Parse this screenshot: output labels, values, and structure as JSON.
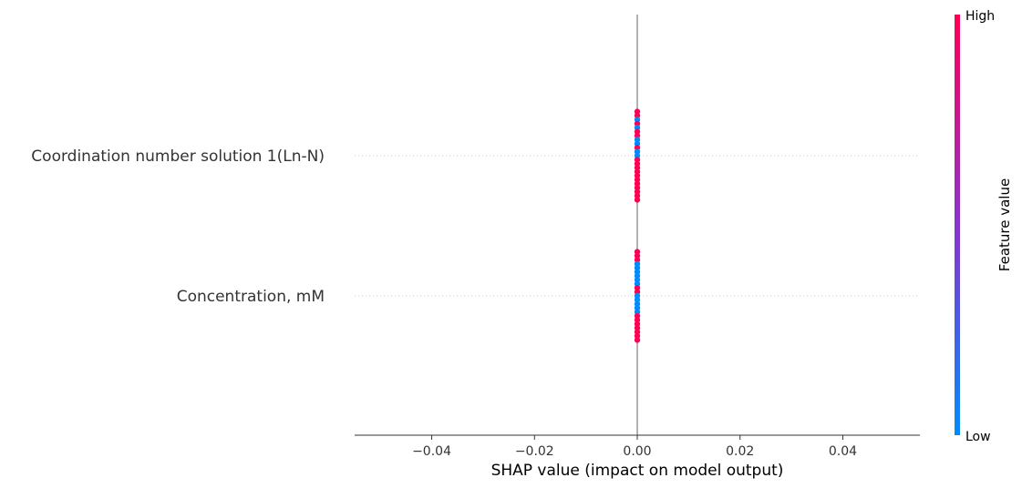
{
  "chart_data": {
    "type": "scatter",
    "subtype": "shap-beeswarm",
    "features": [
      {
        "name": "Coordination number solution  1(Ln-N)",
        "points": [
          {
            "shap": 0.0,
            "feature_level": "high"
          },
          {
            "shap": 0.0,
            "feature_level": "high"
          },
          {
            "shap": 0.0,
            "feature_level": "low"
          },
          {
            "shap": 0.0,
            "feature_level": "high"
          },
          {
            "shap": 0.0,
            "feature_level": "low"
          },
          {
            "shap": 0.0,
            "feature_level": "high"
          },
          {
            "shap": 0.0,
            "feature_level": "high"
          },
          {
            "shap": 0.0,
            "feature_level": "low"
          },
          {
            "shap": 0.0,
            "feature_level": "low"
          },
          {
            "shap": 0.0,
            "feature_level": "high"
          },
          {
            "shap": 0.0,
            "feature_level": "low"
          },
          {
            "shap": 0.0,
            "feature_level": "low"
          },
          {
            "shap": 0.0,
            "feature_level": "high"
          },
          {
            "shap": 0.0,
            "feature_level": "high"
          },
          {
            "shap": 0.0,
            "feature_level": "high"
          },
          {
            "shap": 0.0,
            "feature_level": "high"
          },
          {
            "shap": 0.0,
            "feature_level": "high"
          },
          {
            "shap": 0.0,
            "feature_level": "high"
          },
          {
            "shap": 0.0,
            "feature_level": "high"
          },
          {
            "shap": 0.0,
            "feature_level": "high"
          },
          {
            "shap": 0.0,
            "feature_level": "high"
          },
          {
            "shap": 0.0,
            "feature_level": "high"
          },
          {
            "shap": 0.0,
            "feature_level": "high"
          }
        ]
      },
      {
        "name": "Concentration, mM",
        "points": [
          {
            "shap": 0.0,
            "feature_level": "high"
          },
          {
            "shap": 0.0,
            "feature_level": "high"
          },
          {
            "shap": 0.0,
            "feature_level": "high"
          },
          {
            "shap": 0.0,
            "feature_level": "low"
          },
          {
            "shap": 0.0,
            "feature_level": "low"
          },
          {
            "shap": 0.0,
            "feature_level": "low"
          },
          {
            "shap": 0.0,
            "feature_level": "low"
          },
          {
            "shap": 0.0,
            "feature_level": "low"
          },
          {
            "shap": 0.0,
            "feature_level": "low"
          },
          {
            "shap": 0.0,
            "feature_level": "high"
          },
          {
            "shap": 0.0,
            "feature_level": "high"
          },
          {
            "shap": 0.0,
            "feature_level": "low"
          },
          {
            "shap": 0.0,
            "feature_level": "low"
          },
          {
            "shap": 0.0,
            "feature_level": "low"
          },
          {
            "shap": 0.0,
            "feature_level": "low"
          },
          {
            "shap": 0.0,
            "feature_level": "low"
          },
          {
            "shap": 0.0,
            "feature_level": "high"
          },
          {
            "shap": 0.0,
            "feature_level": "high"
          },
          {
            "shap": 0.0,
            "feature_level": "high"
          },
          {
            "shap": 0.0,
            "feature_level": "high"
          },
          {
            "shap": 0.0,
            "feature_level": "high"
          },
          {
            "shap": 0.0,
            "feature_level": "high"
          },
          {
            "shap": 0.0,
            "feature_level": "high"
          }
        ]
      }
    ],
    "x_ticks": [
      -0.04,
      -0.02,
      0.0,
      0.02,
      0.04
    ],
    "x_tick_labels": [
      "−0.04",
      "−0.02",
      "0.00",
      "0.02",
      "0.04"
    ],
    "xlim": [
      -0.055,
      0.055
    ],
    "xlabel": "SHAP value (impact on model output)",
    "colorbar": {
      "title": "Feature value",
      "high_label": "High",
      "low_label": "Low",
      "high_color": "#ff0052",
      "mid_color": "#8a33ce",
      "low_color": "#008bfb"
    },
    "grid": false,
    "zero_line": true
  }
}
